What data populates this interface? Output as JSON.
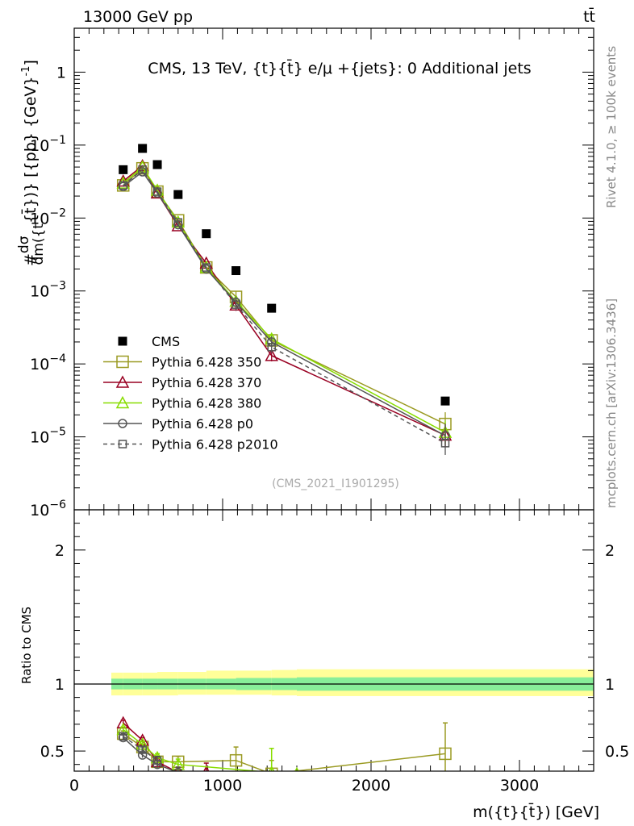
{
  "header": {
    "left": "13000 GeV pp",
    "right": "tt̄"
  },
  "side_texts": {
    "rivet": "Rivet 4.1.0, ≥ 100k events",
    "mcplots": "mcplots.cern.ch [arXiv:1306.3436]"
  },
  "chart_data": [
    {
      "type": "scatter",
      "title": "CMS, 13 TeV, {t}{t̄} e/μ +{jets}: 0 Additional jets",
      "watermark": "(CMS_2021_I1901295)",
      "ylabel": "#dσ/dm({t}{t̄}) [{pb} {GeV}⁻¹]",
      "ylabel_parts": [
        "#",
        "dσ",
        "dm({t",
        "{t̄})} [{pb} {GeV}",
        "-1",
        "]"
      ],
      "yscale": "log",
      "xlim": [
        0,
        3500
      ],
      "ylim": [
        1e-06,
        4
      ],
      "ytick_labels": [
        {
          "v": 1,
          "base": "1",
          "exp": ""
        },
        {
          "v": 0.1,
          "base": "10",
          "exp": "−1"
        },
        {
          "v": 0.01,
          "base": "10",
          "exp": "−2"
        },
        {
          "v": 0.001,
          "base": "10",
          "exp": "−3"
        },
        {
          "v": 0.0001,
          "base": "10",
          "exp": "−4"
        },
        {
          "v": 1e-05,
          "base": "10",
          "exp": "−5"
        },
        {
          "v": 1e-06,
          "base": "10",
          "exp": "−6"
        }
      ],
      "legend_position": "bottom-left",
      "x": [
        330,
        460,
        560,
        700,
        890,
        1090,
        1330,
        2500
      ],
      "series": [
        {
          "name": "CMS",
          "color": "#000000",
          "marker": "filled-square",
          "line": "none",
          "values": [
            0.046,
            0.09,
            0.054,
            0.021,
            0.0061,
            0.0019,
            0.00058,
            3.1e-05
          ]
        },
        {
          "name": "Pythia 6.428 350",
          "color": "#9a9a22",
          "marker": "open-square",
          "line": "solid",
          "values": [
            0.028,
            0.048,
            0.023,
            0.0093,
            0.0021,
            0.00083,
            0.00021,
            1.5e-05
          ]
        },
        {
          "name": "Pythia 6.428 370",
          "color": "#990022",
          "marker": "open-triangle",
          "line": "solid",
          "values": [
            0.032,
            0.052,
            0.022,
            0.0078,
            0.0024,
            0.00064,
            0.00013,
            1.05e-05
          ]
        },
        {
          "name": "Pythia 6.428 380",
          "color": "#88dd00",
          "marker": "open-triangle",
          "line": "solid",
          "values": [
            0.03,
            0.05,
            0.024,
            0.0088,
            0.0021,
            0.00072,
            0.00022,
            1.15e-05
          ]
        },
        {
          "name": "Pythia 6.428 p0",
          "color": "#555555",
          "marker": "open-circle",
          "line": "solid",
          "values": [
            0.027,
            0.043,
            0.022,
            0.0081,
            0.002,
            0.0007,
            0.0002,
            1.04e-05
          ]
        },
        {
          "name": "Pythia 6.428 p2010",
          "color": "#555555",
          "marker": "open-square-small",
          "line": "dashed",
          "values": [
            0.028,
            0.046,
            0.023,
            0.0087,
            0.0021,
            0.00065,
            0.00017,
            8.2e-06
          ]
        }
      ]
    },
    {
      "type": "scatter",
      "title": "",
      "ylabel": "Ratio to CMS",
      "xlabel": "m({t}{t̄}) [GeV]",
      "xlim": [
        0,
        3500
      ],
      "ylim": [
        0.35,
        2.3
      ],
      "xtick_labels": [
        "0",
        "1000",
        "2000",
        "3000"
      ],
      "xticks": [
        0,
        1000,
        2000,
        3000
      ],
      "ytick_labels": [
        "0.5",
        "1",
        "2"
      ],
      "yticks": [
        0.5,
        1,
        2
      ],
      "bands": {
        "edges": [
          250,
          330,
          460,
          560,
          700,
          890,
          1090,
          1330,
          1500,
          3500
        ],
        "stat_lo": [
          0.96,
          0.96,
          0.96,
          0.96,
          0.96,
          0.96,
          0.955,
          0.955,
          0.95
        ],
        "stat_hi": [
          1.04,
          1.04,
          1.04,
          1.04,
          1.04,
          1.04,
          1.045,
          1.045,
          1.05
        ],
        "tot_lo": [
          0.915,
          0.915,
          0.915,
          0.915,
          0.92,
          0.92,
          0.92,
          0.915,
          0.91
        ],
        "tot_hi": [
          1.085,
          1.085,
          1.085,
          1.09,
          1.09,
          1.1,
          1.1,
          1.105,
          1.11
        ]
      },
      "series": [
        {
          "name": "Pythia 6.428 350",
          "color": "#9a9a22",
          "marker": "open-square",
          "line": "solid",
          "x": [
            330,
            460,
            560,
            700,
            1090,
            1330,
            2500
          ],
          "values": [
            0.63,
            0.53,
            0.42,
            0.42,
            0.43,
            0.33,
            0.48
          ],
          "errors": [
            0.02,
            0.02,
            0.03,
            0.04,
            0.1,
            0.1,
            0.23
          ]
        },
        {
          "name": "Pythia 6.428 370",
          "color": "#990022",
          "marker": "open-triangle",
          "line": "solid",
          "x": [
            330,
            460,
            560,
            700,
            890
          ],
          "values": [
            0.71,
            0.58,
            0.42,
            0.34,
            0.34
          ],
          "errors": [
            0.02,
            0.02,
            0.03,
            0.04,
            0.07
          ]
        },
        {
          "name": "Pythia 6.428 380",
          "color": "#88dd00",
          "marker": "open-triangle",
          "line": "solid",
          "x": [
            330,
            460,
            560,
            700,
            1330,
            1500
          ],
          "values": [
            0.66,
            0.55,
            0.45,
            0.4,
            0.34,
            0.33
          ],
          "errors": [
            0.02,
            0.02,
            0.03,
            0.04,
            0.18,
            0.0
          ]
        },
        {
          "name": "Pythia 6.428 p0",
          "color": "#555555",
          "marker": "open-circle",
          "line": "solid",
          "x": [
            330,
            460,
            560,
            700
          ],
          "values": [
            0.6,
            0.47,
            0.4,
            0.34
          ],
          "errors": [
            0.02,
            0.02,
            0.03,
            0.04
          ]
        },
        {
          "name": "Pythia 6.428 p2010",
          "color": "#555555",
          "marker": "open-square-small",
          "line": "dashed",
          "x": [
            330,
            460,
            560
          ],
          "values": [
            0.61,
            0.51,
            0.43
          ],
          "errors": [
            0.02,
            0.02,
            0.03
          ]
        }
      ]
    }
  ]
}
